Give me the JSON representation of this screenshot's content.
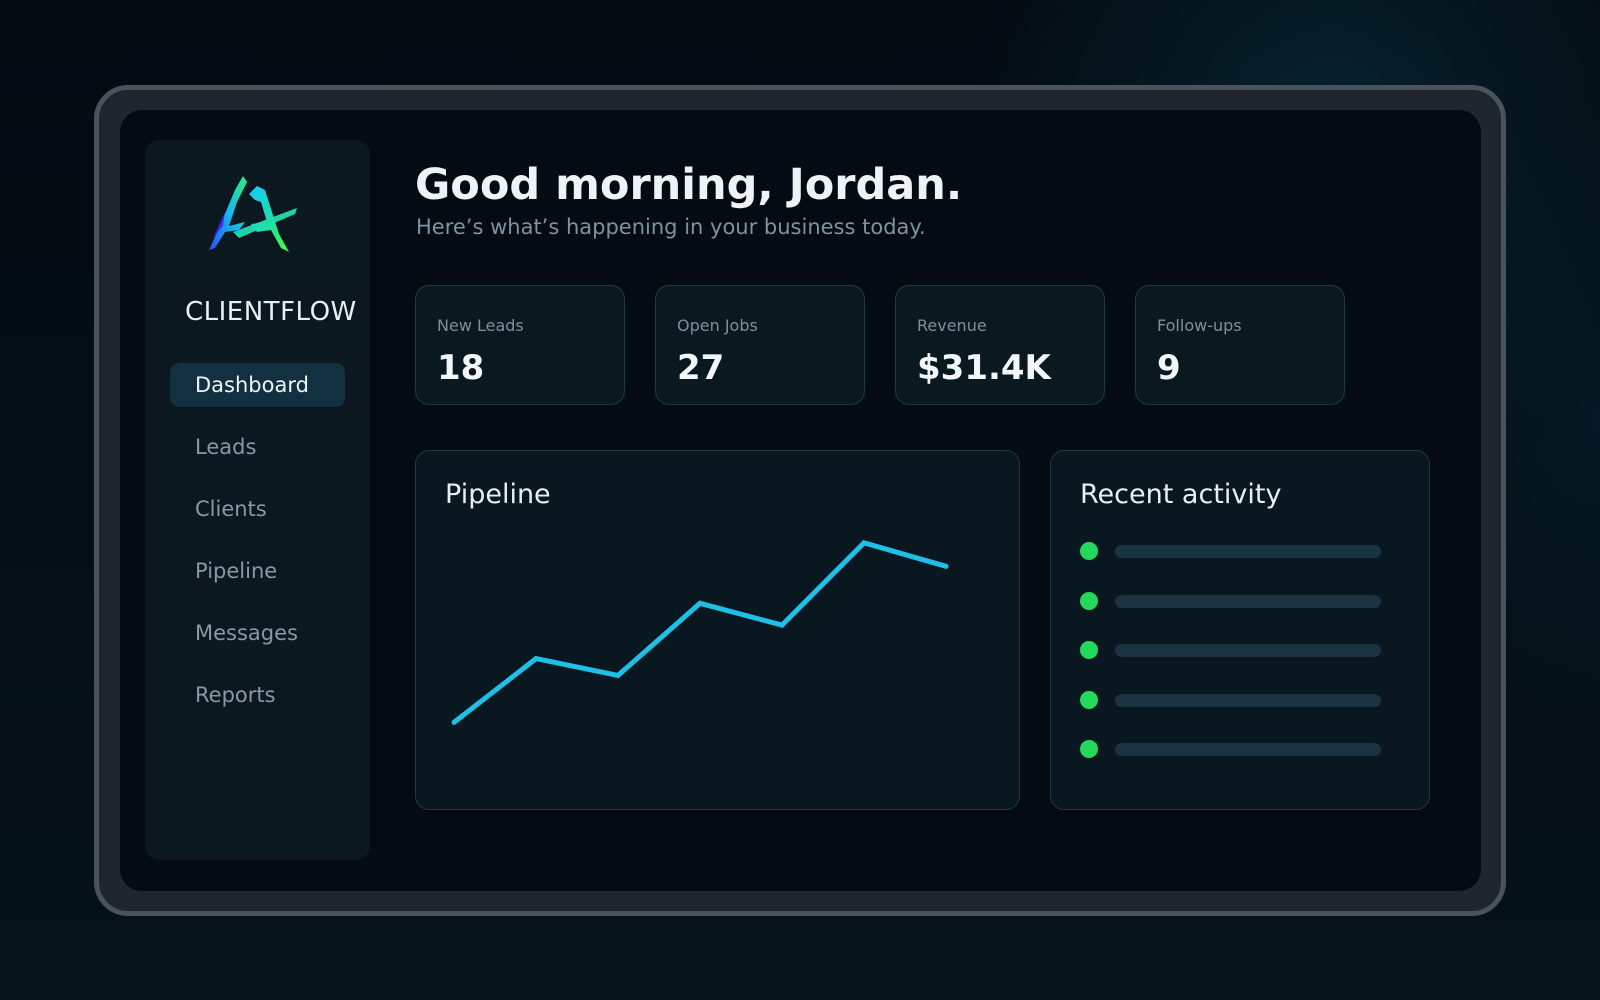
{
  "brand": {
    "name": "CLIENTFLOW",
    "logo": "ca-brush-logo"
  },
  "nav": {
    "items": [
      {
        "label": "Dashboard",
        "active": true
      },
      {
        "label": "Leads",
        "active": false
      },
      {
        "label": "Clients",
        "active": false
      },
      {
        "label": "Pipeline",
        "active": false
      },
      {
        "label": "Messages",
        "active": false
      },
      {
        "label": "Reports",
        "active": false
      }
    ]
  },
  "header": {
    "greeting": "Good morning, Jordan.",
    "subtitle": "Here’s what’s happening in your business today."
  },
  "stats": [
    {
      "label": "New Leads",
      "value": "18"
    },
    {
      "label": "Open Jobs",
      "value": "27"
    },
    {
      "label": "Revenue",
      "value": "$31.4K"
    },
    {
      "label": "Follow-ups",
      "value": "9"
    }
  ],
  "pipeline": {
    "title": "Pipeline"
  },
  "activity": {
    "title": "Recent activity",
    "items": [
      {
        "status": "active"
      },
      {
        "status": "active"
      },
      {
        "status": "active"
      },
      {
        "status": "active"
      },
      {
        "status": "active"
      }
    ]
  },
  "colors": {
    "accent_line": "#1ec0e6",
    "activity_dot": "#22d95b",
    "nav_active_bg": "#12303f",
    "background": "#040b12"
  },
  "chart_data": {
    "type": "line",
    "title": "Pipeline",
    "xlabel": "",
    "ylabel": "",
    "grid": false,
    "x": [
      1,
      2,
      3,
      4,
      5,
      6,
      7
    ],
    "series": [
      {
        "values": [
          2,
          5.8,
          4.8,
          9.1,
          7.8,
          12.7,
          11.3
        ]
      }
    ],
    "ylim": [
      0,
      14
    ]
  }
}
